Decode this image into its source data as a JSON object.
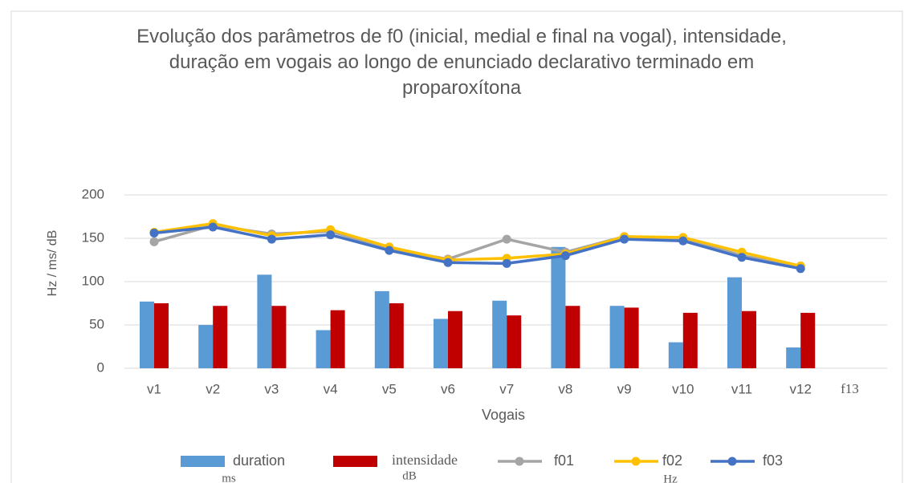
{
  "chart_data": {
    "type": "bar-line",
    "title": "Evolução dos parâmetros de f0 (inicial, medial e final na vogal), intensidade, duração em vogais ao longo de enunciado declarativo terminado em proparoxítona",
    "x_label": "Vogais",
    "y_label": "Hz / ms/ dB",
    "categories": [
      "v1",
      "v2",
      "v3",
      "v4",
      "v5",
      "v6",
      "v7",
      "v8",
      "v9",
      "v10",
      "v11",
      "v12",
      "f13"
    ],
    "series": [
      {
        "name": "duration",
        "kind": "bar",
        "color": "#5b9bd5",
        "values": [
          77,
          50,
          108,
          44,
          89,
          57,
          78,
          140,
          72,
          30,
          105,
          24,
          null
        ]
      },
      {
        "name": "intensidade",
        "kind": "bar",
        "color": "#c00000",
        "values": [
          75,
          72,
          72,
          67,
          75,
          66,
          61,
          72,
          70,
          64,
          66,
          64,
          null
        ]
      },
      {
        "name": "f01",
        "kind": "line",
        "color": "#a5a5a5",
        "values": [
          146,
          165,
          155,
          158,
          138,
          126,
          149,
          134,
          152,
          150,
          130,
          118,
          null
        ]
      },
      {
        "name": "f02",
        "kind": "line",
        "color": "#ffc000",
        "values": [
          157,
          167,
          153,
          160,
          140,
          125,
          127,
          132,
          152,
          151,
          134,
          118,
          null
        ]
      },
      {
        "name": "f03",
        "kind": "line",
        "color": "#4472c4",
        "values": [
          156,
          163,
          149,
          154,
          136,
          122,
          121,
          130,
          149,
          147,
          128,
          115,
          null
        ]
      }
    ],
    "legend_notes": [
      "ms",
      "dB",
      "Hz"
    ],
    "ylim": [
      0,
      200
    ],
    "yticks": [
      0,
      50,
      100,
      150,
      200
    ],
    "grid": true,
    "legend": "bottom"
  }
}
